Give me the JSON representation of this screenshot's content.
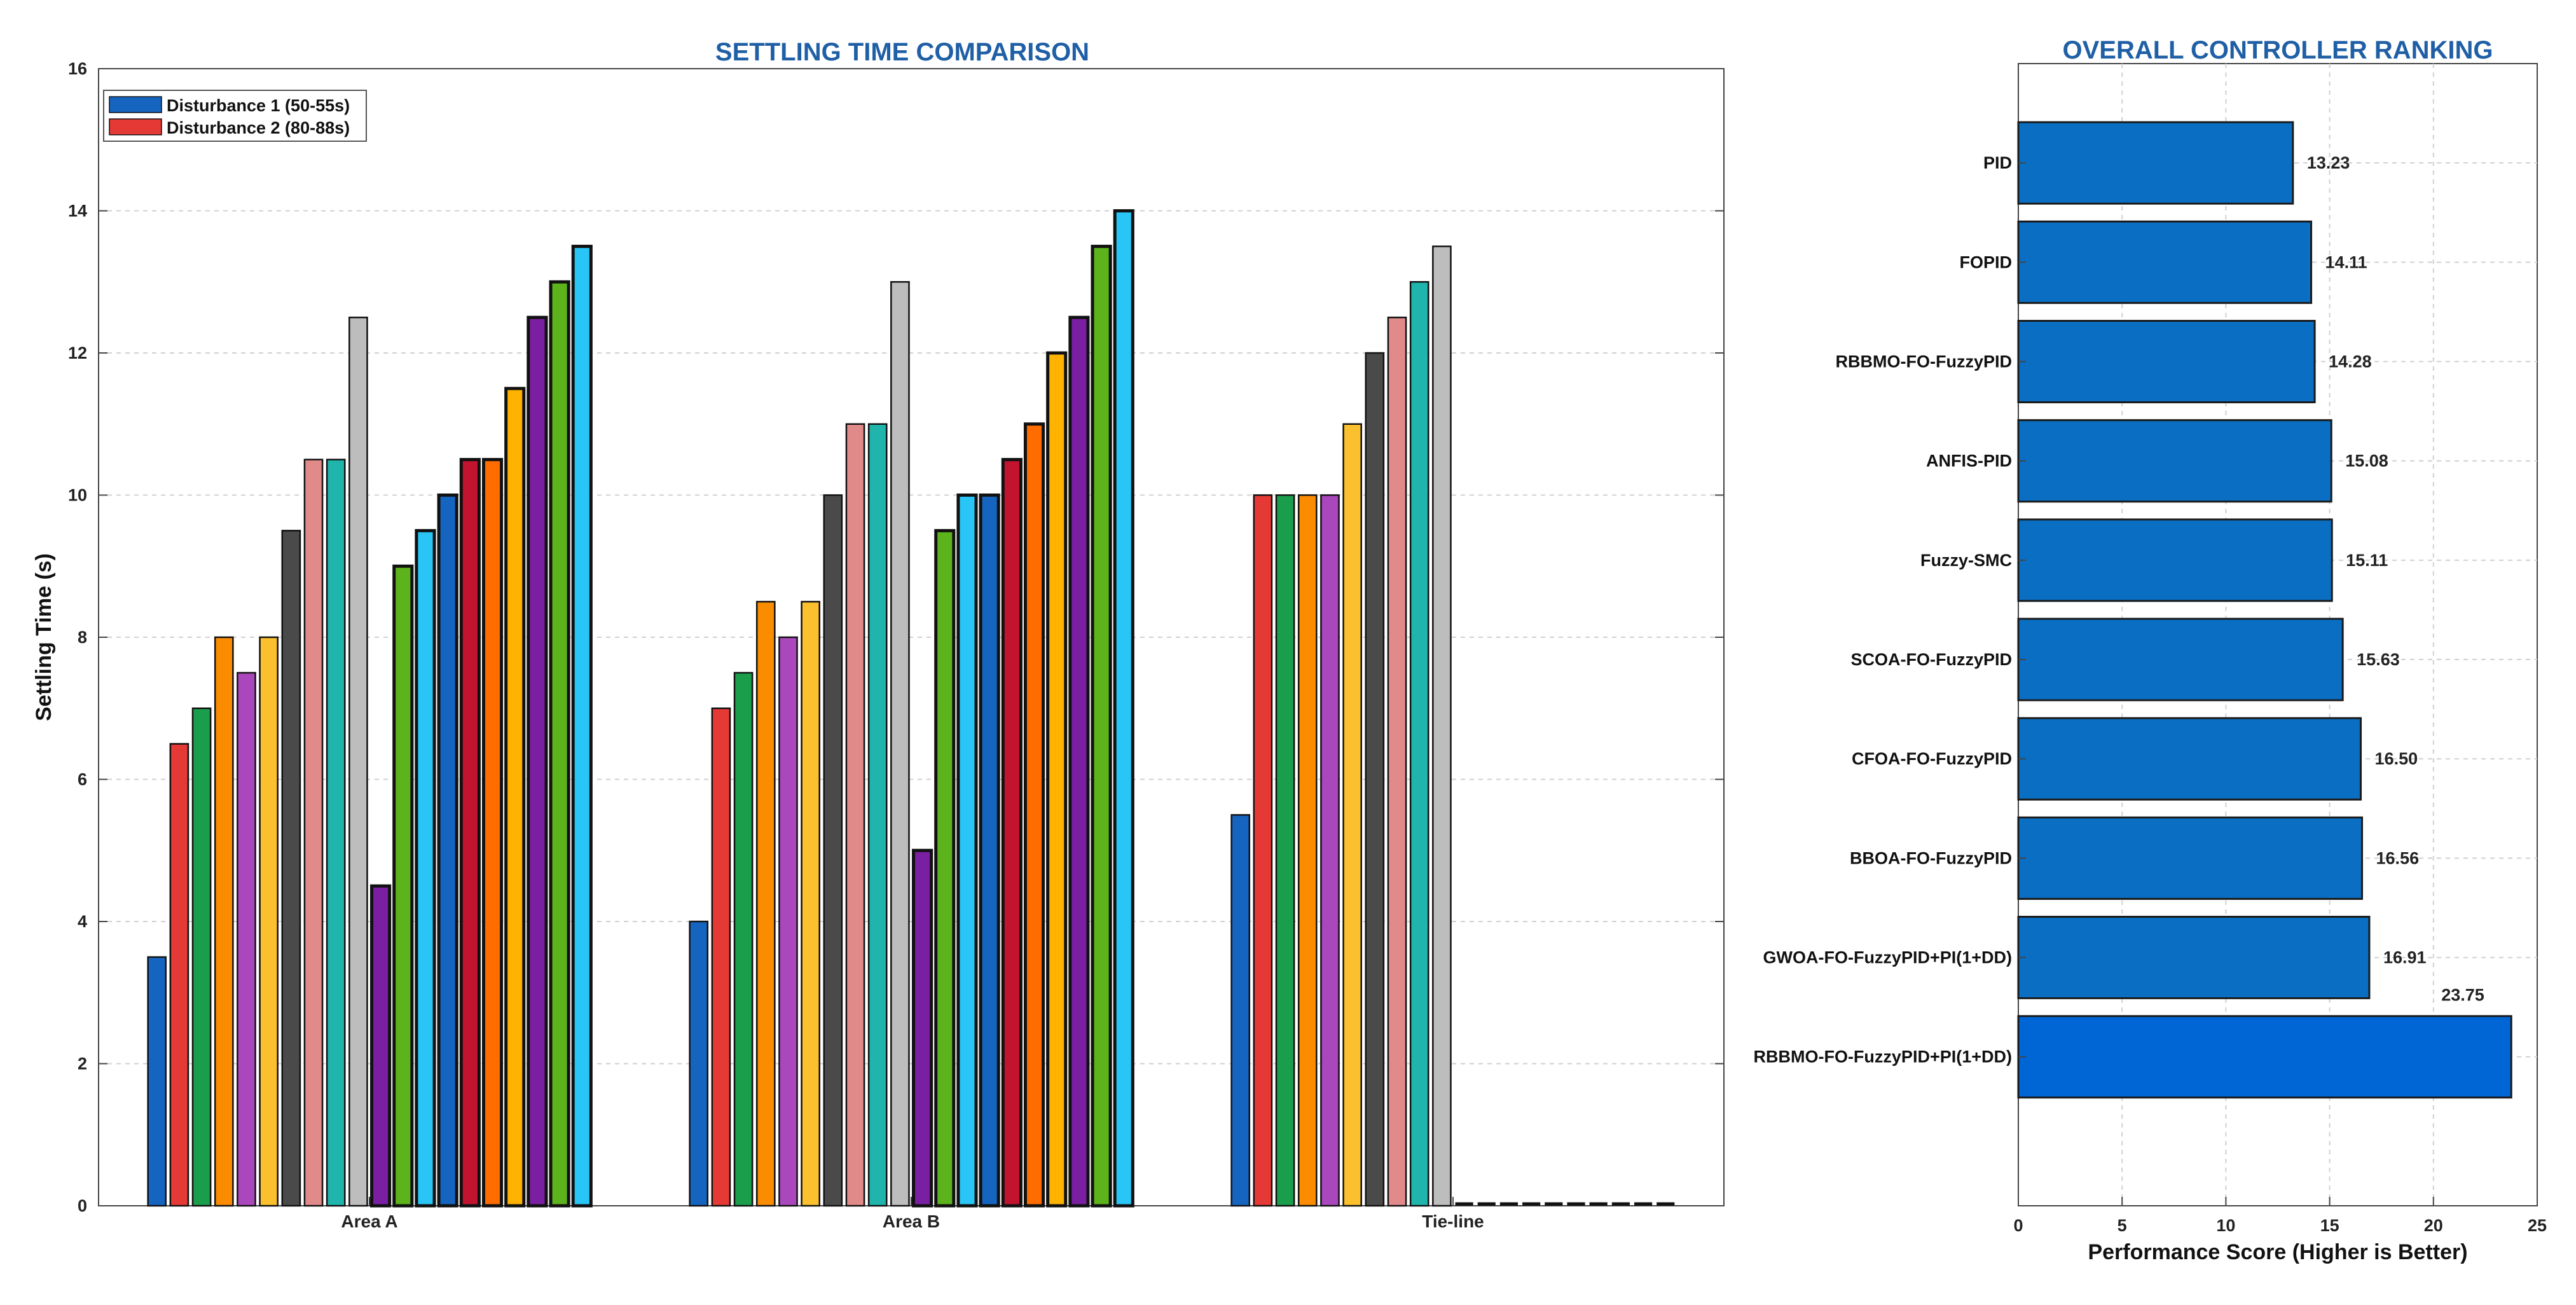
{
  "chart_data": [
    {
      "type": "bar",
      "title": "SETTLING TIME COMPARISON",
      "xlabel": "",
      "ylabel": "Settling Time (s)",
      "ylim": [
        0,
        16
      ],
      "yticks": [
        0,
        2,
        4,
        6,
        8,
        10,
        12,
        14,
        16
      ],
      "grid": true,
      "legend_position": "top-left",
      "legend": [
        {
          "label": "Disturbance 1 (50-55s)",
          "color": "#1565c0"
        },
        {
          "label": "Disturbance 2 (80-88s)",
          "color": "#e53935"
        }
      ],
      "categories": [
        "Area A",
        "Area B",
        "Tie-line"
      ],
      "bar_colors": [
        "#1565c0",
        "#e53935",
        "#1b9e4b",
        "#fb8c00",
        "#ab47bc",
        "#fbc02d",
        "#4a4a4a",
        "#e08a8a",
        "#1fb5ad",
        "#bdbdbd",
        "#7b1fa2",
        "#5db31b",
        "#29c5f6",
        "#1565c0",
        "#c2132f",
        "#ff6d00",
        "#ffb300",
        "#7b1fa2",
        "#5db31b",
        "#29c5f6"
      ],
      "values": [
        [
          3.5,
          6.5,
          7.0,
          8.0,
          7.5,
          8.0,
          9.5,
          10.5,
          10.5,
          12.5,
          4.5,
          9.0,
          9.5,
          10.0,
          10.5,
          10.5,
          11.5,
          12.5,
          13.0,
          13.5
        ],
        [
          4.0,
          7.0,
          7.5,
          8.5,
          8.0,
          8.5,
          10.0,
          11.0,
          11.0,
          13.0,
          5.0,
          9.5,
          10.0,
          10.0,
          10.5,
          11.0,
          12.0,
          12.5,
          13.5,
          14.0
        ],
        [
          5.5,
          10.0,
          10.0,
          10.0,
          10.0,
          11.0,
          12.0,
          12.5,
          13.0,
          13.5,
          0,
          0,
          0,
          0,
          0,
          0,
          0,
          0,
          0,
          0
        ]
      ]
    },
    {
      "type": "bar",
      "orientation": "horizontal",
      "title": "OVERALL CONTROLLER RANKING",
      "xlabel": "Performance Score (Higher is Better)",
      "ylabel": "",
      "xlim": [
        0,
        25
      ],
      "xticks": [
        0,
        5,
        10,
        15,
        20,
        25
      ],
      "grid": true,
      "categories": [
        "PID",
        "FOPID",
        "RBBMO-FO-FuzzyPID",
        "ANFIS-PID",
        "Fuzzy-SMC",
        "SCOA-FO-FuzzyPID",
        "CFOA-FO-FuzzyPID",
        "BBOA-FO-FuzzyPID",
        "GWOA-FO-FuzzyPID+PI(1+DD)",
        "RBBMO-FO-FuzzyPID+PI(1+DD)"
      ],
      "values": [
        13.23,
        14.11,
        14.28,
        15.08,
        15.11,
        15.63,
        16.5,
        16.56,
        16.91,
        23.75
      ],
      "value_labels": [
        "13.23",
        "14.11",
        "14.28",
        "15.08",
        "15.11",
        "15.63",
        "16.50",
        "16.56",
        "16.91",
        "23.75"
      ],
      "bar_color": "#0a6fc2",
      "highlight_color": "#0066d6"
    }
  ]
}
